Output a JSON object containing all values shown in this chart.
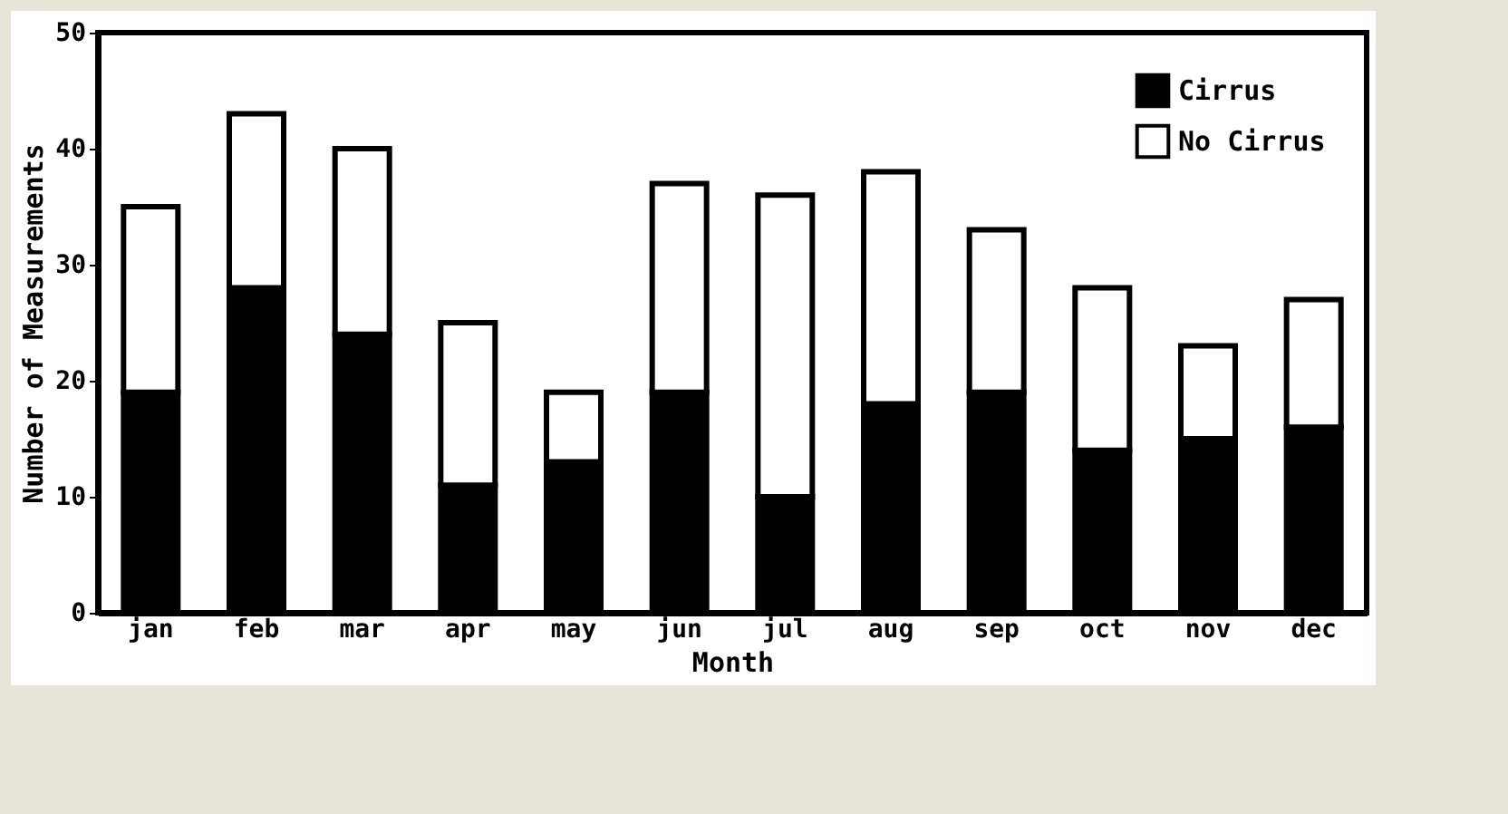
{
  "chart_data": {
    "type": "bar",
    "xlabel": "Month",
    "ylabel": "Number of Measurements",
    "categories": [
      "jan",
      "feb",
      "mar",
      "apr",
      "may",
      "jun",
      "jul",
      "aug",
      "sep",
      "oct",
      "nov",
      "dec"
    ],
    "stacked": true,
    "series": [
      {
        "name": "Cirrus",
        "color": "#000000",
        "values": [
          19,
          28,
          24,
          11,
          13,
          19,
          10,
          18,
          19,
          14,
          15,
          16
        ]
      },
      {
        "name": "No Cirrus",
        "color": "#ffffff",
        "values": [
          16,
          15,
          16,
          14,
          6,
          18,
          26,
          20,
          14,
          14,
          8,
          11
        ]
      }
    ],
    "ylim": [
      0,
      50
    ],
    "yticks": [
      0,
      10,
      20,
      30,
      40,
      50
    ],
    "grid": false,
    "legend": "top right"
  }
}
